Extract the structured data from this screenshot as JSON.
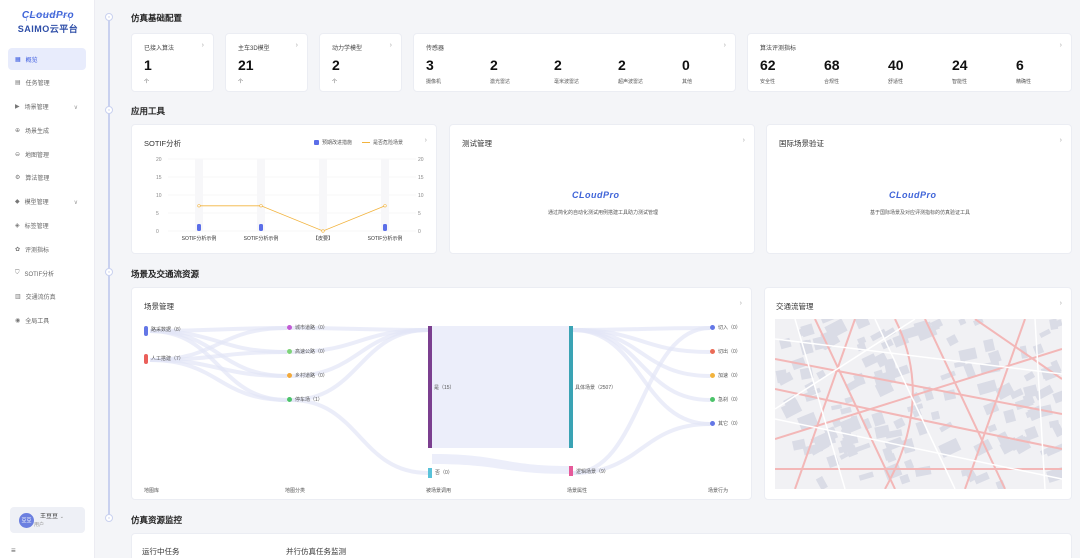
{
  "brand": {
    "logo": "CLoudPro",
    "name": "SAIMO云平台"
  },
  "menu": [
    {
      "label": "概览",
      "icon": "grid-icon",
      "active": true
    },
    {
      "label": "任务管理",
      "icon": "clipboard-icon"
    },
    {
      "label": "场景管理",
      "icon": "play-icon",
      "chev": "∨"
    },
    {
      "label": "场景生成",
      "icon": "plus-icon"
    },
    {
      "label": "地图管理",
      "icon": "map-icon"
    },
    {
      "label": "算法管理",
      "icon": "network-icon"
    },
    {
      "label": "模型管理",
      "icon": "cube-icon",
      "chev": "∨"
    },
    {
      "label": "标签管理",
      "icon": "tag-icon"
    },
    {
      "label": "评测指标",
      "icon": "gauge-icon"
    },
    {
      "label": "SOTIF分析",
      "icon": "shield-icon"
    },
    {
      "label": "交通流仿真",
      "icon": "building-icon"
    },
    {
      "label": "全局工具",
      "icon": "tool-icon"
    }
  ],
  "user": {
    "avatar": "豆豆",
    "name": "王豆豆",
    "role": "用户"
  },
  "sections": {
    "s1": "仿真基础配置",
    "s2": "应用工具",
    "s3": "场景及交通流资源",
    "s4": "仿真资源监控"
  },
  "stats": {
    "algo": {
      "title": "已接入算法",
      "value": "1",
      "unit": "个"
    },
    "model": {
      "title": "主车3D模型",
      "value": "21",
      "unit": "个"
    },
    "dyn": {
      "title": "动力学模型",
      "value": "2",
      "unit": "个"
    },
    "sensor": {
      "title": "传感器",
      "items": [
        {
          "v": "3",
          "l": "摄像机"
        },
        {
          "v": "2",
          "l": "激光雷达"
        },
        {
          "v": "2",
          "l": "毫米波雷达"
        },
        {
          "v": "2",
          "l": "超声波雷达"
        },
        {
          "v": "0",
          "l": "其他"
        }
      ]
    },
    "eval": {
      "title": "算法评测指标",
      "items": [
        {
          "v": "62",
          "l": "安全性"
        },
        {
          "v": "68",
          "l": "合规性"
        },
        {
          "v": "40",
          "l": "舒适性"
        },
        {
          "v": "24",
          "l": "智能性"
        },
        {
          "v": "6",
          "l": "精确性"
        }
      ]
    }
  },
  "tools": {
    "sotif": {
      "title": "SOTIF分析",
      "legend1": "预期改进措施",
      "legend2": "是否危险场景"
    },
    "test": {
      "title": "测试管理",
      "desc": "通过简化的自动化测试用例搭建工具助力测试管理"
    },
    "intl": {
      "title": "国际场景验证",
      "desc": "基于国际场景及对应评测指标的仿真验证工具"
    }
  },
  "chart_data": {
    "type": "bar",
    "categories": [
      "SOTIF分析示例",
      "SOTIF分析示例",
      "【皮要】",
      "SOTIF分析示例"
    ],
    "series": [
      {
        "name": "预期改进措施",
        "values": [
          1,
          1,
          0,
          1
        ]
      },
      {
        "name": "是否危险场景",
        "values": [
          7,
          7,
          0,
          7
        ]
      }
    ],
    "ylim": [
      0,
      20
    ],
    "yticks": [
      "0",
      "5",
      "10",
      "15",
      "20"
    ],
    "colors": {
      "bar": "#5b6ee8",
      "line": "#f2b33d"
    }
  },
  "scene": {
    "title": "场景管理",
    "col1": [
      {
        "label": "路采数据（8）",
        "color": "#6477e6"
      },
      {
        "label": "人工搭建（7）",
        "color": "#ea5f5a"
      }
    ],
    "col2": [
      {
        "label": "城市道路（0）",
        "color": "#c15bd5"
      },
      {
        "label": "高速公路（0）",
        "color": "#7ed37a"
      },
      {
        "label": "乡村道路（0）",
        "color": "#f2a93b"
      },
      {
        "label": "停车场（1）",
        "color": "#4cc36a"
      }
    ],
    "col3": [
      {
        "label": "是（15）",
        "color": "#7b3f8f"
      },
      {
        "label": "否（0）",
        "color": "#59c2d9"
      }
    ],
    "col4": [
      {
        "label": "具体场景（2507）",
        "color": "#3aa3b4"
      },
      {
        "label": "逻辑场景（9）",
        "color": "#e65a9a"
      }
    ],
    "col5": [
      {
        "label": "切入（0）",
        "color": "#6477e6"
      },
      {
        "label": "切出（0）",
        "color": "#ea6b56"
      },
      {
        "label": "加速（0）",
        "color": "#f2b33d"
      },
      {
        "label": "急刹（0）",
        "color": "#4cc36a"
      },
      {
        "label": "其它（0）",
        "color": "#6477e6"
      }
    ],
    "axis": [
      "地图库",
      "地图分类",
      "被场景调用",
      "场景属性",
      "场景行为"
    ]
  },
  "traffic": {
    "title": "交通流管理"
  },
  "monitor": {
    "running": "运行中任务",
    "parallel": "并行仿真任务监测"
  }
}
